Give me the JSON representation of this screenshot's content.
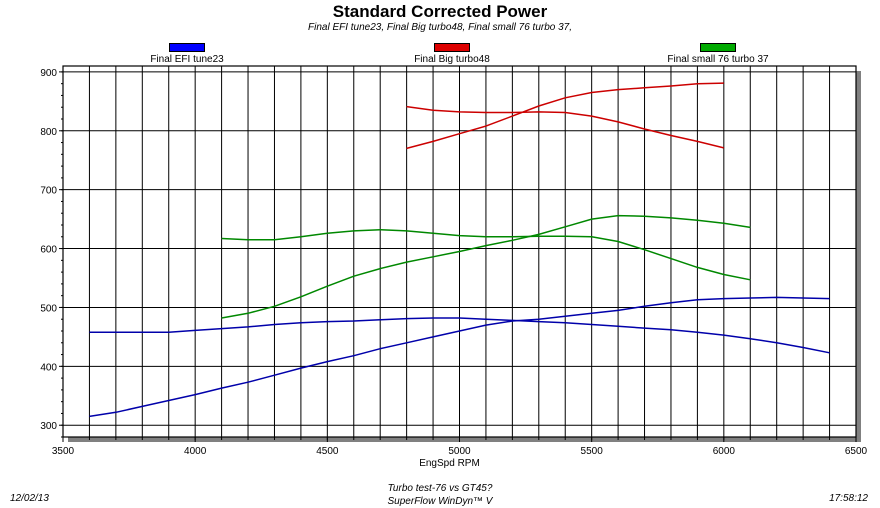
{
  "chart_data": {
    "type": "line",
    "title": "Standard Corrected Power",
    "subtitle": "Final EFI tune23, Final Big turbo48, Final small 76 turbo 37,",
    "xlabel": "EngSpd RPM",
    "ylabel": "",
    "xlim": [
      3500,
      6500
    ],
    "ylim": [
      280,
      910
    ],
    "xticks": [
      3500,
      4000,
      4500,
      5000,
      5500,
      6000,
      6500
    ],
    "yticks": [
      300,
      400,
      500,
      600,
      700,
      800,
      900
    ],
    "grid": true,
    "legend_position": "top",
    "legend": [
      {
        "name": "Final EFI tune23",
        "color": "#0000ff"
      },
      {
        "name": "Final Big turbo48",
        "color": "#dd0000"
      },
      {
        "name": "Final small 76 turbo 37",
        "color": "#00aa00"
      }
    ],
    "series": [
      {
        "name": "Final EFI tune23",
        "color": "#0000aa",
        "x": [
          3600,
          3700,
          3800,
          3900,
          4000,
          4100,
          4200,
          4300,
          4400,
          4500,
          4600,
          4700,
          4800,
          4900,
          5000,
          5100,
          5200,
          5300,
          5400,
          5500,
          5600,
          5700,
          5800,
          5900,
          6000,
          6100,
          6200,
          6300,
          6400
        ],
        "y": [
          315,
          322,
          332,
          342,
          352,
          363,
          373,
          385,
          397,
          408,
          418,
          430,
          440,
          450,
          460,
          470,
          477,
          480,
          485,
          490,
          495,
          502,
          508,
          513,
          515,
          516,
          517,
          516,
          515
        ]
      },
      {
        "name": "Final EFI tune23",
        "color": "#0000aa",
        "x": [
          3600,
          3700,
          3800,
          3900,
          4000,
          4100,
          4200,
          4300,
          4400,
          4500,
          4600,
          4700,
          4800,
          4900,
          5000,
          5100,
          5200,
          5300,
          5400,
          5500,
          5600,
          5700,
          5800,
          5900,
          6000,
          6100,
          6200,
          6300,
          6400
        ],
        "y": [
          458,
          458,
          458,
          458,
          461,
          464,
          467,
          471,
          474,
          476,
          477,
          479,
          481,
          482,
          482,
          480,
          478,
          476,
          474,
          471,
          468,
          465,
          462,
          458,
          453,
          447,
          440,
          432,
          423
        ]
      },
      {
        "name": "Final Big turbo48",
        "color": "#cc0000",
        "x": [
          4800,
          4900,
          5000,
          5100,
          5200,
          5300,
          5400,
          5500,
          5600,
          5700,
          5800,
          5900,
          6000
        ],
        "y": [
          770,
          782,
          795,
          808,
          825,
          842,
          856,
          865,
          870,
          873,
          876,
          880,
          881
        ]
      },
      {
        "name": "Final Big turbo48",
        "color": "#cc0000",
        "x": [
          4800,
          4900,
          5000,
          5100,
          5200,
          5300,
          5400,
          5500,
          5600,
          5700,
          5800,
          5900,
          6000
        ],
        "y": [
          841,
          835,
          832,
          831,
          831,
          832,
          831,
          825,
          815,
          803,
          792,
          782,
          771
        ]
      },
      {
        "name": "Final small 76 turbo 37",
        "color": "#008800",
        "x": [
          4100,
          4200,
          4300,
          4400,
          4500,
          4600,
          4700,
          4800,
          4900,
          5000,
          5100,
          5200,
          5300,
          5400,
          5500,
          5600,
          5700,
          5800,
          5900,
          6000,
          6100
        ],
        "y": [
          482,
          490,
          502,
          518,
          536,
          553,
          566,
          577,
          586,
          595,
          605,
          614,
          624,
          637,
          650,
          656,
          655,
          652,
          648,
          643,
          636
        ]
      },
      {
        "name": "Final small 76 turbo 37",
        "color": "#008800",
        "x": [
          4100,
          4200,
          4300,
          4400,
          4500,
          4600,
          4700,
          4800,
          4900,
          5000,
          5100,
          5200,
          5300,
          5400,
          5500,
          5600,
          5700,
          5800,
          5900,
          6000,
          6100
        ],
        "y": [
          617,
          615,
          615,
          620,
          626,
          630,
          632,
          630,
          626,
          622,
          620,
          620,
          621,
          621,
          620,
          612,
          598,
          583,
          568,
          556,
          547
        ]
      }
    ]
  },
  "footer": {
    "date": "12/02/13",
    "line1": "Turbo test-76 vs GT45?",
    "line2": "SuperFlow WinDyn™ V",
    "time": "17:58:12"
  }
}
